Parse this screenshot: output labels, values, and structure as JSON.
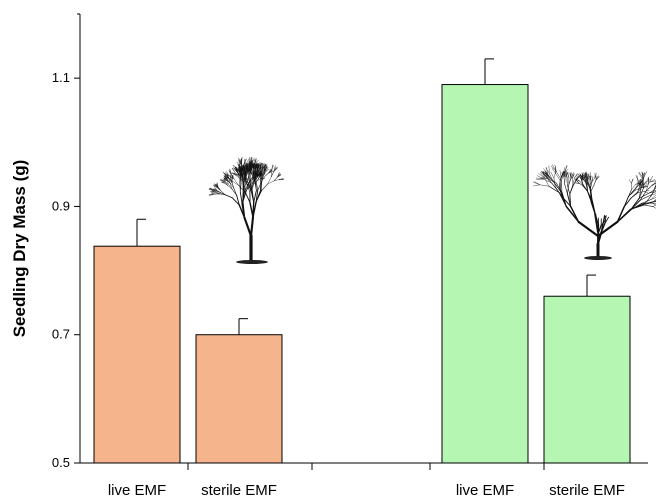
{
  "chart_data": {
    "type": "bar",
    "title": "",
    "xlabel": "",
    "ylabel": "Seedling Dry Mass (g)",
    "ylim": [
      0.5,
      1.2
    ],
    "yticks": [
      0.5,
      0.7,
      0.9,
      1.1
    ],
    "grid": false,
    "bars": [
      {
        "label": "live EMF",
        "group": 1,
        "value": 0.838,
        "error": 0.042,
        "color": "#F5B48B"
      },
      {
        "label": "sterile EMF",
        "group": 1,
        "value": 0.7,
        "error": 0.025,
        "color": "#F5B48B"
      },
      {
        "label": "live EMF",
        "group": 2,
        "value": 1.09,
        "error": 0.04,
        "color": "#B5F7B2"
      },
      {
        "label": "sterile EMF",
        "group": 2,
        "value": 0.76,
        "error": 0.033,
        "color": "#B5F7B2"
      }
    ],
    "annotations": [
      {
        "type": "tree-silhouette",
        "shape": "upright",
        "group": 1
      },
      {
        "type": "tree-silhouette",
        "shape": "spreading",
        "group": 2
      }
    ]
  }
}
